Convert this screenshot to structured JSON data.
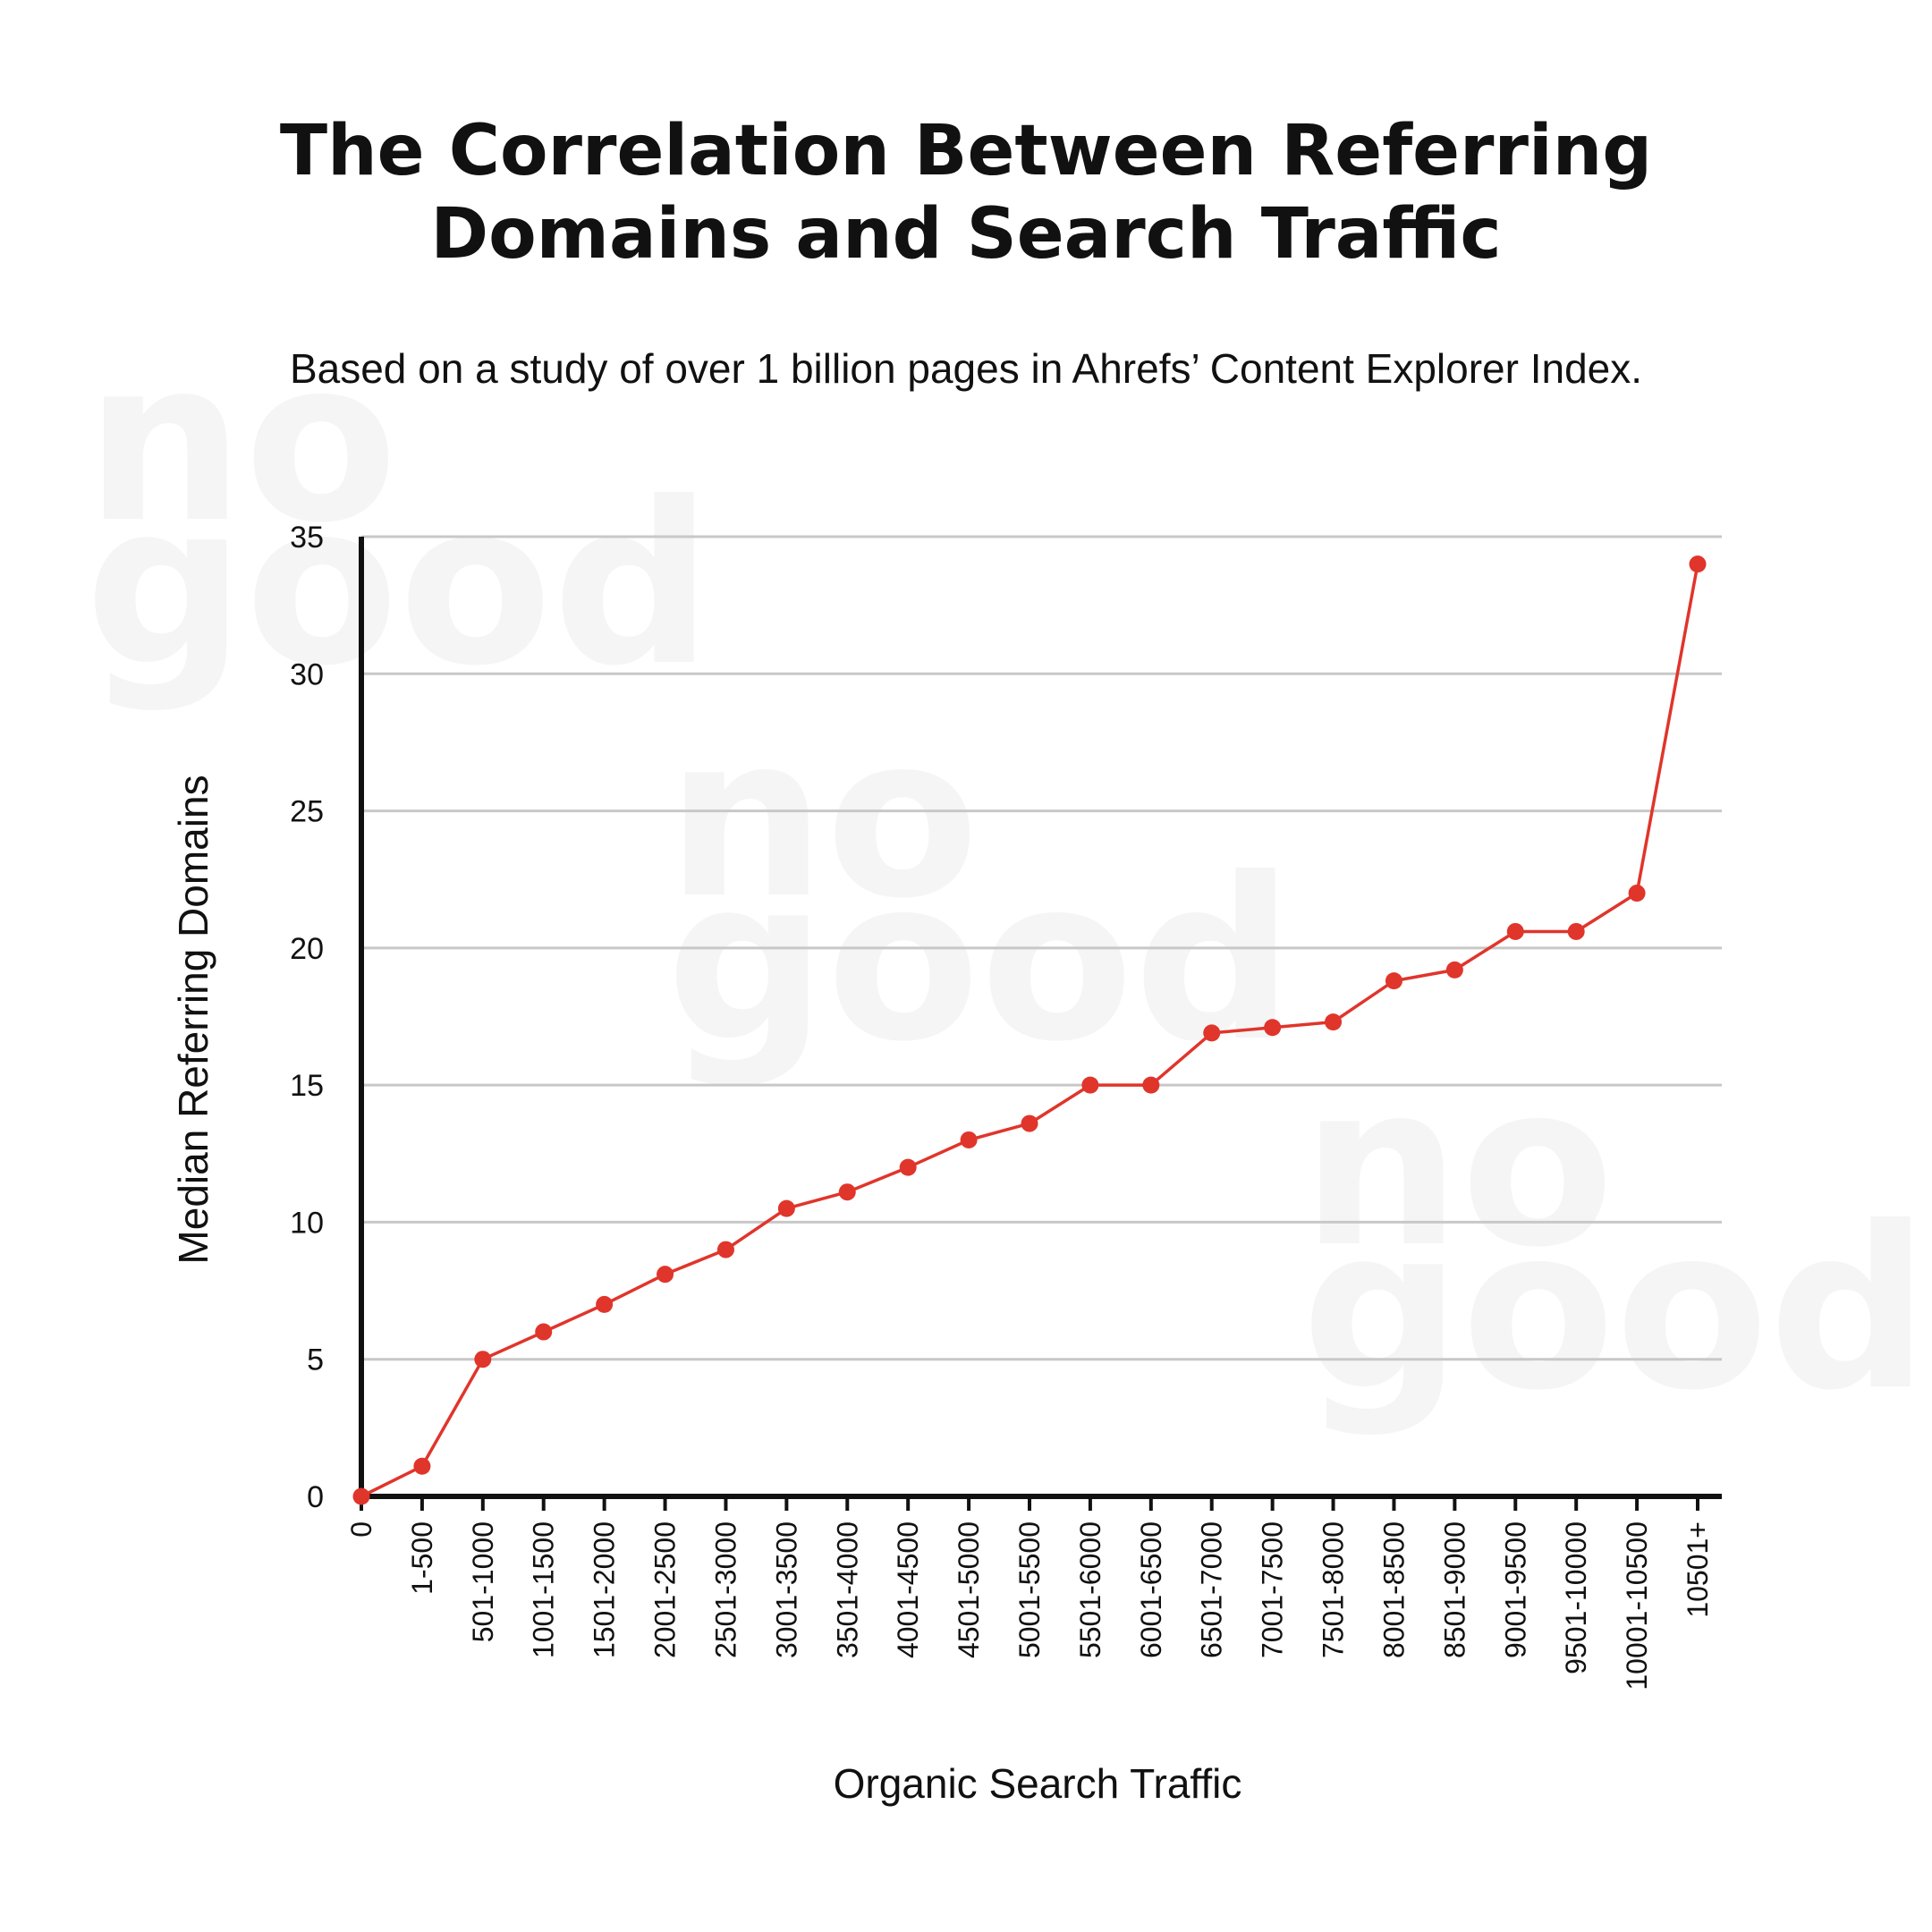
{
  "title_lines": [
    "The Correlation Between Referring",
    "Domains and Search Traffic"
  ],
  "subtitle": "Based on a study of over 1 billion pages in Ahrefs’ Content Explorer Index.",
  "watermark": [
    "no",
    "good"
  ],
  "colors": {
    "series": "#e0352b",
    "text": "#111111",
    "grid": "#c8c8c8",
    "watermark": "#f5f5f5"
  },
  "chart_data": {
    "type": "line",
    "title": "The Correlation Between Referring Domains and Search Traffic",
    "subtitle": "Based on a study of over 1 billion pages in Ahrefs’ Content Explorer Index.",
    "xlabel": "Organic Search Traffic",
    "ylabel": "Median Referring Domains",
    "ylim": [
      0,
      35
    ],
    "yticks": [
      0,
      5,
      10,
      15,
      20,
      25,
      30,
      35
    ],
    "grid": true,
    "legend": "none",
    "categories": [
      "0",
      "1-500",
      "501-1000",
      "1001-1500",
      "1501-2000",
      "2001-2500",
      "2501-3000",
      "3001-3500",
      "3501-4000",
      "4001-4500",
      "4501-5000",
      "5001-5500",
      "5501-6000",
      "6001-6500",
      "6501-7000",
      "7001-7500",
      "7501-8000",
      "8001-8500",
      "8501-9000",
      "9001-9500",
      "9501-10000",
      "10001-10500",
      "10501+"
    ],
    "values": [
      0,
      1.1,
      5,
      6,
      7,
      8.1,
      9,
      10.5,
      11.1,
      12,
      13,
      13.6,
      15,
      15,
      16.9,
      17.1,
      17.3,
      18.8,
      19.2,
      20.6,
      20.6,
      22,
      34
    ]
  }
}
